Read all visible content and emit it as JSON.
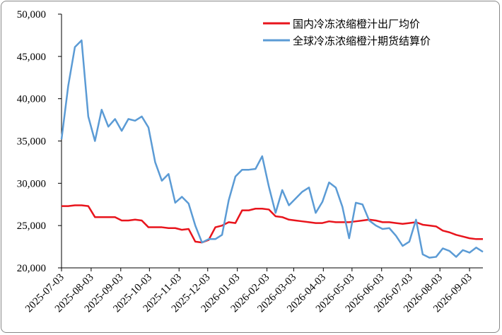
{
  "chart_data": {
    "type": "line",
    "x": [
      "2025-07-03",
      "2025-07-10",
      "2025-07-17",
      "2025-07-24",
      "2025-07-31",
      "2025-08-07",
      "2025-08-14",
      "2025-08-21",
      "2025-08-28",
      "2025-09-04",
      "2025-09-11",
      "2025-09-18",
      "2025-09-25",
      "2025-10-02",
      "2025-10-09",
      "2025-10-16",
      "2025-10-23",
      "2025-10-30",
      "2025-11-06",
      "2025-11-13",
      "2025-11-20",
      "2025-11-27",
      "2025-12-04",
      "2025-12-11",
      "2025-12-18",
      "2025-12-25",
      "2026-01-01",
      "2026-01-08",
      "2026-01-15",
      "2026-01-22",
      "2026-01-29",
      "2026-02-05",
      "2026-02-12",
      "2026-02-19",
      "2026-02-26",
      "2026-03-05",
      "2026-03-12",
      "2026-03-19",
      "2026-03-26",
      "2026-04-02",
      "2026-04-09",
      "2026-04-16",
      "2026-04-23",
      "2026-04-30",
      "2026-05-07",
      "2026-05-14",
      "2026-05-21",
      "2026-05-28",
      "2026-06-04",
      "2026-06-11",
      "2026-06-18",
      "2026-06-25",
      "2026-07-02",
      "2026-07-09",
      "2026-07-16",
      "2026-07-23",
      "2026-07-30",
      "2026-08-06",
      "2026-08-13",
      "2026-08-20",
      "2026-08-27",
      "2026-09-03",
      "2026-09-10",
      "2026-09-17"
    ],
    "series": [
      {
        "name": "国内冷冻浓缩橙汁出厂均价",
        "color": "#e8141c",
        "values": [
          27300,
          27300,
          27400,
          27400,
          27300,
          26000,
          26000,
          26000,
          26000,
          25600,
          25600,
          25700,
          25600,
          24800,
          24800,
          24800,
          24700,
          24700,
          24500,
          24600,
          23100,
          23000,
          23300,
          24800,
          25000,
          25400,
          25300,
          26800,
          26800,
          27000,
          27000,
          26900,
          26100,
          26000,
          25700,
          25600,
          25500,
          25400,
          25300,
          25300,
          25500,
          25400,
          25400,
          25400,
          25500,
          25600,
          25700,
          25600,
          25400,
          25400,
          25300,
          25200,
          25300,
          25400,
          25100,
          25000,
          24900,
          24400,
          24200,
          23900,
          23700,
          23500,
          23400,
          23400
        ]
      },
      {
        "name": "全球冷冻浓缩橙汁期货结算价",
        "color": "#5b9bd5",
        "values": [
          35200,
          41500,
          46100,
          46900,
          37900,
          35000,
          38700,
          36700,
          37600,
          36200,
          37600,
          37400,
          37900,
          36600,
          32500,
          30300,
          31100,
          27700,
          28400,
          27600,
          25000,
          23000,
          23400,
          23400,
          23900,
          28000,
          30800,
          31600,
          31600,
          31700,
          33200,
          29600,
          26500,
          29200,
          27400,
          28200,
          29000,
          29500,
          26500,
          27800,
          30100,
          29500,
          27200,
          23500,
          27700,
          27500,
          25600,
          25000,
          24600,
          24700,
          23800,
          22600,
          23100,
          25700,
          21600,
          21200,
          21300,
          22300,
          22000,
          21300,
          22100,
          21800,
          22400,
          21900
        ]
      }
    ],
    "xlim": [
      "2025-07-03",
      "2026-09-17"
    ],
    "xticks": [
      "2025-07-03",
      "2025-08-03",
      "2025-09-03",
      "2025-10-03",
      "2025-11-03",
      "2025-12-03",
      "2026-01-03",
      "2026-02-03",
      "2026-03-03",
      "2026-04-03",
      "2026-05-03",
      "2026-06-03",
      "2026-07-03",
      "2026-08-03",
      "2026-09-03"
    ],
    "ylim": [
      20000,
      50000
    ],
    "yticks": [
      {
        "value": 20000,
        "label": "20,000"
      },
      {
        "value": 25000,
        "label": "25,000"
      },
      {
        "value": 30000,
        "label": "30,000"
      },
      {
        "value": 35000,
        "label": "35,000"
      },
      {
        "value": 40000,
        "label": "40,000"
      },
      {
        "value": 45000,
        "label": "45,000"
      },
      {
        "value": 50000,
        "label": "50,000"
      }
    ],
    "grid": false,
    "legend": "upper right"
  }
}
